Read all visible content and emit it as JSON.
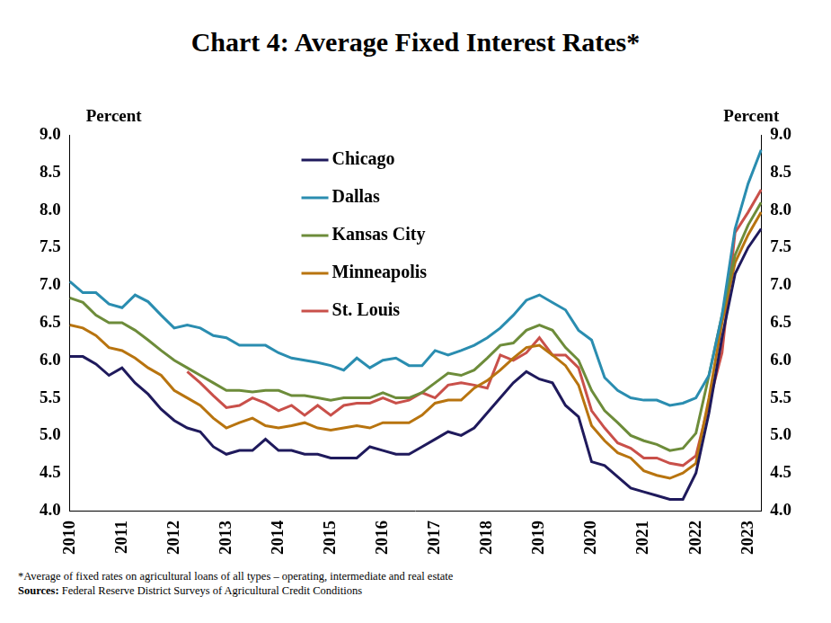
{
  "chart_data": {
    "type": "line",
    "title": "Chart 4: Average Fixed Interest Rates*",
    "y_label": "Percent",
    "y2_label": "Percent",
    "footnote": "*Average of fixed rates on agricultural loans of all types – operating, intermediate and real estate",
    "source": "Sources: Federal Reserve District Surveys of Agricultural Credit Conditions",
    "categories": [
      "2010",
      null,
      null,
      null,
      "2011",
      null,
      null,
      null,
      "2012",
      null,
      null,
      null,
      "2013",
      null,
      null,
      null,
      "2014",
      null,
      null,
      null,
      "2015",
      null,
      null,
      null,
      "2016",
      null,
      null,
      null,
      "2017",
      null,
      null,
      null,
      "2018",
      null,
      null,
      null,
      "2019",
      null,
      null,
      null,
      "2020",
      null,
      null,
      null,
      "2021",
      null,
      null,
      null,
      "2022",
      null,
      null,
      null,
      "2023",
      null
    ],
    "series": [
      {
        "name": "Chicago",
        "color": "#1f1a5c",
        "values": [
          6.05,
          6.05,
          5.95,
          5.8,
          5.9,
          5.7,
          5.55,
          5.35,
          5.2,
          5.1,
          5.05,
          4.85,
          4.75,
          4.8,
          4.8,
          4.95,
          4.8,
          4.8,
          4.75,
          4.75,
          4.7,
          4.7,
          4.7,
          4.85,
          4.8,
          4.75,
          4.75,
          4.85,
          4.95,
          5.05,
          5.0,
          5.1,
          5.3,
          5.5,
          5.7,
          5.85,
          5.75,
          5.7,
          5.4,
          5.25,
          4.65,
          4.6,
          4.45,
          4.3,
          4.25,
          4.2,
          4.15,
          4.15,
          4.5,
          5.3,
          6.3,
          7.15,
          7.5,
          7.75
        ]
      },
      {
        "name": "Dallas",
        "color": "#2a8db0",
        "values": [
          7.05,
          6.9,
          6.9,
          6.75,
          6.7,
          6.87,
          6.78,
          6.6,
          6.43,
          6.47,
          6.43,
          6.33,
          6.3,
          6.2,
          6.2,
          6.2,
          6.1,
          6.03,
          6.0,
          5.97,
          5.93,
          5.87,
          6.03,
          5.9,
          6.0,
          6.03,
          5.93,
          5.93,
          6.13,
          6.07,
          6.13,
          6.2,
          6.3,
          6.43,
          6.6,
          6.8,
          6.87,
          6.77,
          6.67,
          6.4,
          6.27,
          5.77,
          5.6,
          5.5,
          5.47,
          5.47,
          5.4,
          5.43,
          5.5,
          5.8,
          6.6,
          7.75,
          8.35,
          8.8
        ]
      },
      {
        "name": "Kansas City",
        "color": "#6d8c3a",
        "values": [
          6.83,
          6.77,
          6.6,
          6.5,
          6.5,
          6.4,
          6.27,
          6.13,
          6.0,
          5.9,
          5.8,
          5.7,
          5.6,
          5.6,
          5.58,
          5.6,
          5.6,
          5.53,
          5.53,
          5.5,
          5.47,
          5.5,
          5.5,
          5.5,
          5.57,
          5.5,
          5.5,
          5.57,
          5.7,
          5.83,
          5.8,
          5.87,
          6.03,
          6.2,
          6.23,
          6.4,
          6.47,
          6.4,
          6.17,
          6.0,
          5.6,
          5.33,
          5.17,
          5.0,
          4.93,
          4.88,
          4.8,
          4.83,
          5.03,
          5.8,
          6.6,
          7.4,
          7.8,
          8.1
        ]
      },
      {
        "name": "Minneapolis",
        "color": "#b8740f",
        "values": [
          6.47,
          6.43,
          6.33,
          6.17,
          6.13,
          6.03,
          5.9,
          5.8,
          5.6,
          5.5,
          5.4,
          5.23,
          5.1,
          5.17,
          5.23,
          5.13,
          5.1,
          5.13,
          5.17,
          5.1,
          5.07,
          5.1,
          5.13,
          5.1,
          5.17,
          5.17,
          5.17,
          5.27,
          5.43,
          5.47,
          5.47,
          5.63,
          5.73,
          5.87,
          6.03,
          6.17,
          6.2,
          6.07,
          5.93,
          5.67,
          5.13,
          4.93,
          4.77,
          4.7,
          4.53,
          4.47,
          4.43,
          4.5,
          4.63,
          5.5,
          6.5,
          7.3,
          7.67,
          7.97
        ]
      },
      {
        "name": "St. Louis",
        "color": "#c9504a",
        "values": [
          null,
          null,
          null,
          null,
          null,
          null,
          null,
          null,
          null,
          5.85,
          5.7,
          5.53,
          5.37,
          5.4,
          5.5,
          5.43,
          5.33,
          5.4,
          5.27,
          5.4,
          5.27,
          5.4,
          5.43,
          5.43,
          5.5,
          5.43,
          5.47,
          5.57,
          5.5,
          5.67,
          5.7,
          5.67,
          5.63,
          6.07,
          6.0,
          6.1,
          6.3,
          6.07,
          6.07,
          5.9,
          5.33,
          5.1,
          4.9,
          4.83,
          4.7,
          4.7,
          4.63,
          4.6,
          4.73,
          5.43,
          6.1,
          7.7,
          7.97,
          8.27
        ]
      }
    ],
    "ylim": [
      4,
      9
    ],
    "yticks": [
      {
        "value": 4,
        "label": "4.0"
      },
      {
        "value": 4.5,
        "label": "4.5"
      },
      {
        "value": 5,
        "label": "5.0"
      },
      {
        "value": 5.5,
        "label": "5.5"
      },
      {
        "value": 6,
        "label": "6.0"
      },
      {
        "value": 6.5,
        "label": "6.5"
      },
      {
        "value": 7,
        "label": "7.0"
      },
      {
        "value": 7.5,
        "label": "7.5"
      },
      {
        "value": 8,
        "label": "8.0"
      },
      {
        "value": 8.5,
        "label": "8.5"
      },
      {
        "value": 9,
        "label": "9.0"
      }
    ],
    "y2lim": [
      4,
      9
    ],
    "y2ticks": [
      {
        "value": 4,
        "label": "4.0"
      },
      {
        "value": 4.5,
        "label": "4.5"
      },
      {
        "value": 5,
        "label": "5.0"
      },
      {
        "value": 5.5,
        "label": "5.5"
      },
      {
        "value": 6,
        "label": "6.0"
      },
      {
        "value": 6.5,
        "label": "6.5"
      },
      {
        "value": 7,
        "label": "7.0"
      },
      {
        "value": 7.5,
        "label": "7.5"
      },
      {
        "value": 8,
        "label": "8.0"
      },
      {
        "value": 8.5,
        "label": "8.5"
      },
      {
        "value": 9,
        "label": "9.0"
      }
    ],
    "grid": false,
    "legend": "top"
  }
}
